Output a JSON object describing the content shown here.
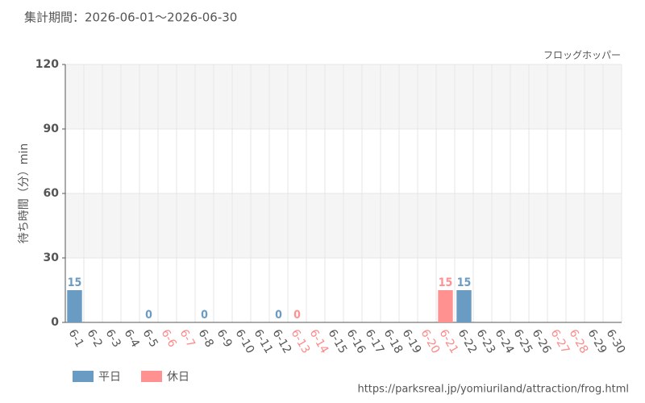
{
  "chart_data": {
    "type": "bar",
    "title": "集計期間：2026-06-01～2026-06-30",
    "subtitle": "フロッグホッパー",
    "y_label": "待ち時間（分）min",
    "source": "https://parksreal.jp/yomiuriland/attraction/frog.html",
    "categories": [
      "6-1",
      "6-2",
      "6-3",
      "6-4",
      "6-5",
      "6-6",
      "6-7",
      "6-8",
      "6-9",
      "6-10",
      "6-11",
      "6-12",
      "6-13",
      "6-14",
      "6-15",
      "6-16",
      "6-17",
      "6-18",
      "6-19",
      "6-20",
      "6-21",
      "6-22",
      "6-23",
      "6-24",
      "6-25",
      "6-26",
      "6-27",
      "6-28",
      "6-29",
      "6-30"
    ],
    "label_colors": [
      "#555",
      "#555",
      "#555",
      "#555",
      "#555",
      "#f88",
      "#f88",
      "#555",
      "#555",
      "#555",
      "#555",
      "#555",
      "#f88",
      "#f88",
      "#555",
      "#555",
      "#555",
      "#555",
      "#555",
      "#f88",
      "#f88",
      "#555",
      "#555",
      "#555",
      "#555",
      "#555",
      "#f88",
      "#f88",
      "#555",
      "#555"
    ],
    "series": [
      {
        "name": "平日",
        "color": "#6a9bc3",
        "values": [
          15,
          null,
          null,
          null,
          0,
          null,
          null,
          0,
          null,
          null,
          null,
          0,
          null,
          null,
          null,
          null,
          null,
          null,
          null,
          null,
          null,
          15,
          null,
          null,
          null,
          null,
          null,
          null,
          null,
          null
        ]
      },
      {
        "name": "休日",
        "color": "#ff9191",
        "values": [
          null,
          null,
          null,
          null,
          null,
          null,
          null,
          null,
          null,
          null,
          null,
          null,
          0,
          null,
          null,
          null,
          null,
          null,
          null,
          null,
          15,
          null,
          null,
          null,
          null,
          null,
          null,
          null,
          null,
          null
        ]
      }
    ],
    "ylim": [
      0,
      120
    ],
    "yticks": [
      0,
      30,
      60,
      90,
      120
    ],
    "grid": true
  }
}
